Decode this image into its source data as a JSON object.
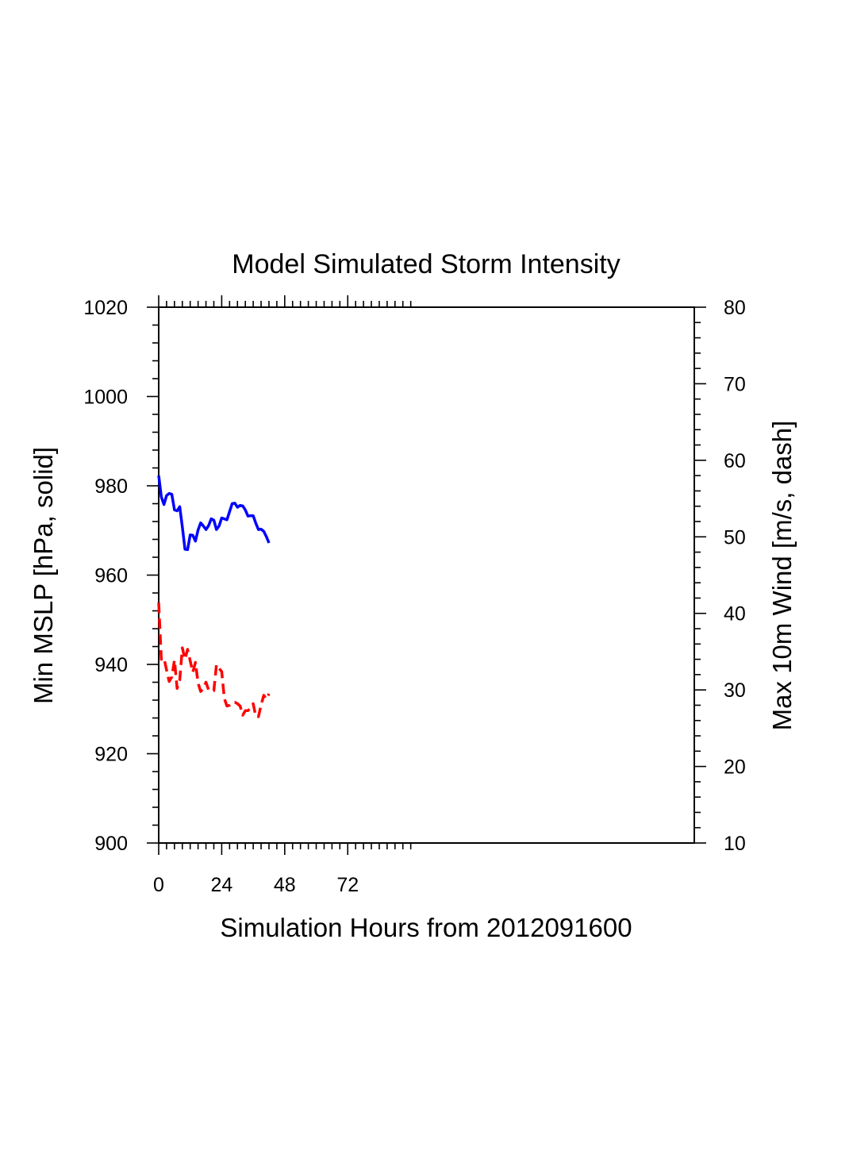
{
  "chart_data": {
    "type": "line",
    "title": "Model Simulated Storm Intensity",
    "xlabel": "Simulation Hours from 2012091600",
    "ylabel": "Min MSLP  [hPa, solid]",
    "y2label": "Max 10m Wind  [m/s, dash]",
    "xlim": [
      0,
      204
    ],
    "ylim": [
      900,
      1020
    ],
    "y2lim": [
      10,
      80
    ],
    "x_ticks": [
      0,
      24,
      48,
      72
    ],
    "y_ticks": [
      900,
      920,
      940,
      960,
      980,
      1000,
      1020
    ],
    "y2_ticks": [
      10,
      20,
      30,
      40,
      50,
      60,
      70,
      80
    ],
    "grid": false,
    "series": [
      {
        "name": "Min MSLP",
        "axis": "left",
        "style": "solid",
        "color": "#0000ff",
        "x": [
          0,
          1,
          2,
          3,
          4,
          5,
          6,
          7,
          8,
          9,
          10,
          11,
          12,
          13,
          14,
          15,
          16,
          17,
          18,
          19,
          20,
          21,
          22,
          23,
          24,
          25,
          26,
          27,
          28,
          29,
          30,
          31,
          32,
          33,
          34,
          35,
          36,
          37,
          38,
          39,
          40,
          41,
          42
        ],
        "values": [
          982.3,
          977.5,
          975.8,
          977.8,
          978.3,
          978.1,
          974.6,
          974.4,
          975.3,
          970.8,
          965.8,
          965.7,
          969.0,
          968.9,
          967.6,
          970.1,
          971.7,
          971.0,
          970.2,
          971.1,
          972.6,
          972.3,
          970.2,
          971.0,
          972.8,
          972.6,
          972.4,
          974.2,
          976.0,
          976.1,
          975.2,
          975.6,
          975.5,
          974.6,
          973.2,
          973.3,
          973.3,
          971.6,
          970.2,
          970.3,
          969.8,
          968.6,
          967.2
        ]
      },
      {
        "name": "Max 10m Wind",
        "axis": "right",
        "style": "dash",
        "color": "#ff0000",
        "x": [
          0,
          1,
          2,
          3,
          4,
          5,
          6,
          7,
          8,
          9,
          10,
          11,
          12,
          13,
          14,
          15,
          16,
          17,
          18,
          19,
          20,
          21,
          22,
          23,
          24,
          25,
          26,
          27,
          28,
          29,
          30,
          31,
          32,
          33,
          34,
          35,
          36,
          37,
          38,
          39,
          40,
          41,
          42
        ],
        "values": [
          41.4,
          34.0,
          34.2,
          32.6,
          31.1,
          31.7,
          33.9,
          30.2,
          31.3,
          35.5,
          34.0,
          35.3,
          33.8,
          32.3,
          33.6,
          30.9,
          29.8,
          30.2,
          31.0,
          30.0,
          29.8,
          29.9,
          33.3,
          32.8,
          32.4,
          28.9,
          27.9,
          28.0,
          28.3,
          28.4,
          28.2,
          27.9,
          26.7,
          27.3,
          27.3,
          27.6,
          28.2,
          26.5,
          26.5,
          28.0,
          29.3,
          28.8,
          29.5
        ]
      }
    ]
  }
}
